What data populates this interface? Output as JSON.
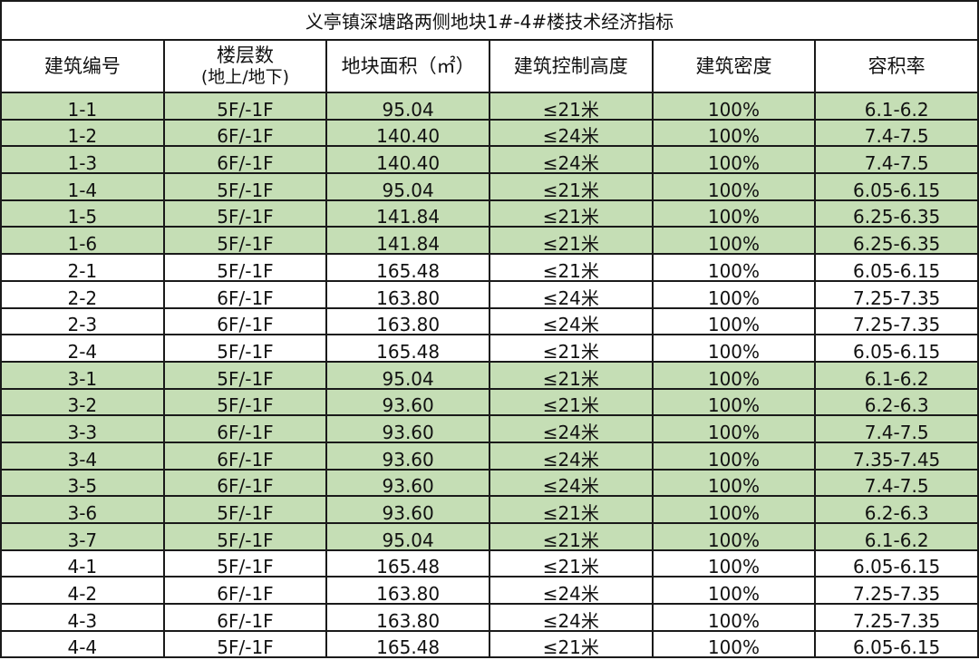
{
  "title": "义亭镇深塘路两侧地块1#-4#楼技术经济指标",
  "headers": [
    "建筑编号",
    "楼层数",
    "(地上/地下)",
    "地块面积（㎡）",
    "建筑控制高度",
    "建筑密度",
    "容积率"
  ],
  "highlight_color": "#c5deb5",
  "rows": [
    {
      "id": "1-1",
      "floors": "5F/-1F",
      "area": "95.04",
      "height": "≤21米",
      "density": "100%",
      "far": "6.1-6.2",
      "green": true
    },
    {
      "id": "1-2",
      "floors": "6F/-1F",
      "area": "140.40",
      "height": "≤24米",
      "density": "100%",
      "far": "7.4-7.5",
      "green": true
    },
    {
      "id": "1-3",
      "floors": "6F/-1F",
      "area": "140.40",
      "height": "≤24米",
      "density": "100%",
      "far": "7.4-7.5",
      "green": true
    },
    {
      "id": "1-4",
      "floors": "5F/-1F",
      "area": "95.04",
      "height": "≤21米",
      "density": "100%",
      "far": "6.05-6.15",
      "green": true
    },
    {
      "id": "1-5",
      "floors": "5F/-1F",
      "area": "141.84",
      "height": "≤21米",
      "density": "100%",
      "far": "6.25-6.35",
      "green": true
    },
    {
      "id": "1-6",
      "floors": "5F/-1F",
      "area": "141.84",
      "height": "≤21米",
      "density": "100%",
      "far": "6.25-6.35",
      "green": true
    },
    {
      "id": "2-1",
      "floors": "5F/-1F",
      "area": "165.48",
      "height": "≤21米",
      "density": "100%",
      "far": "6.05-6.15",
      "green": false
    },
    {
      "id": "2-2",
      "floors": "6F/-1F",
      "area": "163.80",
      "height": "≤24米",
      "density": "100%",
      "far": "7.25-7.35",
      "green": false
    },
    {
      "id": "2-3",
      "floors": "6F/-1F",
      "area": "163.80",
      "height": "≤24米",
      "density": "100%",
      "far": "7.25-7.35",
      "green": false
    },
    {
      "id": "2-4",
      "floors": "5F/-1F",
      "area": "165.48",
      "height": "≤21米",
      "density": "100%",
      "far": "6.05-6.15",
      "green": false
    },
    {
      "id": "3-1",
      "floors": "5F/-1F",
      "area": "95.04",
      "height": "≤21米",
      "density": "100%",
      "far": "6.1-6.2",
      "green": true
    },
    {
      "id": "3-2",
      "floors": "5F/-1F",
      "area": "93.60",
      "height": "≤21米",
      "density": "100%",
      "far": "6.2-6.3",
      "green": true
    },
    {
      "id": "3-3",
      "floors": "6F/-1F",
      "area": "93.60",
      "height": "≤24米",
      "density": "100%",
      "far": "7.4-7.5",
      "green": true
    },
    {
      "id": "3-4",
      "floors": "6F/-1F",
      "area": "93.60",
      "height": "≤24米",
      "density": "100%",
      "far": "7.35-7.45",
      "green": true
    },
    {
      "id": "3-5",
      "floors": "6F/-1F",
      "area": "93.60",
      "height": "≤24米",
      "density": "100%",
      "far": "7.4-7.5",
      "green": true
    },
    {
      "id": "3-6",
      "floors": "5F/-1F",
      "area": "93.60",
      "height": "≤21米",
      "density": "100%",
      "far": "6.2-6.3",
      "green": true
    },
    {
      "id": "3-7",
      "floors": "5F/-1F",
      "area": "95.04",
      "height": "≤21米",
      "density": "100%",
      "far": "6.1-6.2",
      "green": true
    },
    {
      "id": "4-1",
      "floors": "5F/-1F",
      "area": "165.48",
      "height": "≤21米",
      "density": "100%",
      "far": "6.05-6.15",
      "green": false
    },
    {
      "id": "4-2",
      "floors": "6F/-1F",
      "area": "163.80",
      "height": "≤24米",
      "density": "100%",
      "far": "7.25-7.35",
      "green": false
    },
    {
      "id": "4-3",
      "floors": "6F/-1F",
      "area": "163.80",
      "height": "≤24米",
      "density": "100%",
      "far": "7.25-7.35",
      "green": false
    },
    {
      "id": "4-4",
      "floors": "5F/-1F",
      "area": "165.48",
      "height": "≤21米",
      "density": "100%",
      "far": "6.05-6.15",
      "green": false
    }
  ]
}
